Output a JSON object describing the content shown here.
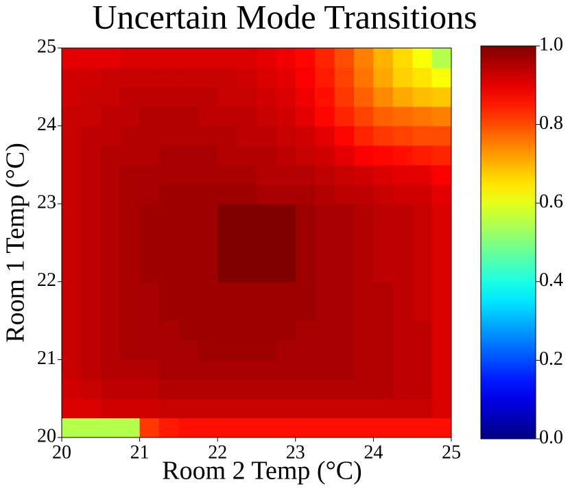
{
  "chart_data": {
    "type": "heatmap",
    "title": "Uncertain Mode Transitions",
    "x_label": "Room 2 Temp (°C)",
    "y_label": "Room 1 Temp (°C)",
    "xlim": [
      20,
      25
    ],
    "ylim": [
      20,
      25
    ],
    "xticks": [
      20,
      21,
      22,
      23,
      24,
      25
    ],
    "yticks": [
      20,
      21,
      22,
      23,
      24,
      25
    ],
    "colormap": "jet",
    "clim": [
      0,
      1
    ],
    "cticks": [
      {
        "value": 0,
        "label": "0.0"
      },
      {
        "value": 0.2,
        "label": "0.2"
      },
      {
        "value": 0.4,
        "label": "0.4"
      },
      {
        "value": 0.6,
        "label": "0.6"
      },
      {
        "value": 0.8,
        "label": "0.8"
      },
      {
        "value": 1,
        "label": "1.0"
      }
    ],
    "x": [
      20.125,
      20.375,
      20.625,
      20.875,
      21.125,
      21.375,
      21.625,
      21.875,
      22.125,
      22.375,
      22.625,
      22.875,
      23.125,
      23.375,
      23.625,
      23.875,
      24.125,
      24.375,
      24.625,
      24.875
    ],
    "y": [
      20.125,
      20.375,
      20.625,
      20.875,
      21.125,
      21.375,
      21.625,
      21.875,
      22.125,
      22.375,
      22.625,
      22.875,
      23.125,
      23.375,
      23.625,
      23.875,
      24.125,
      24.375,
      24.625,
      24.875
    ],
    "z": [
      [
        0.55,
        0.55,
        0.55,
        0.55,
        0.82,
        0.85,
        0.86,
        0.86,
        0.86,
        0.86,
        0.86,
        0.86,
        0.86,
        0.86,
        0.86,
        0.86,
        0.86,
        0.86,
        0.86,
        0.86
      ],
      [
        0.91,
        0.91,
        0.92,
        0.92,
        0.92,
        0.93,
        0.93,
        0.93,
        0.93,
        0.93,
        0.93,
        0.93,
        0.93,
        0.93,
        0.93,
        0.93,
        0.93,
        0.93,
        0.93,
        0.91
      ],
      [
        0.92,
        0.93,
        0.94,
        0.94,
        0.94,
        0.95,
        0.95,
        0.95,
        0.95,
        0.95,
        0.95,
        0.95,
        0.95,
        0.95,
        0.95,
        0.95,
        0.95,
        0.94,
        0.94,
        0.91
      ],
      [
        0.93,
        0.94,
        0.95,
        0.95,
        0.95,
        0.96,
        0.96,
        0.96,
        0.96,
        0.96,
        0.96,
        0.96,
        0.96,
        0.96,
        0.96,
        0.95,
        0.95,
        0.94,
        0.94,
        0.91
      ],
      [
        0.93,
        0.94,
        0.95,
        0.96,
        0.96,
        0.96,
        0.96,
        0.97,
        0.97,
        0.97,
        0.97,
        0.96,
        0.96,
        0.96,
        0.96,
        0.95,
        0.95,
        0.94,
        0.94,
        0.91
      ],
      [
        0.93,
        0.94,
        0.95,
        0.96,
        0.96,
        0.96,
        0.97,
        0.97,
        0.97,
        0.97,
        0.97,
        0.97,
        0.96,
        0.96,
        0.96,
        0.95,
        0.95,
        0.94,
        0.94,
        0.91
      ],
      [
        0.93,
        0.94,
        0.95,
        0.96,
        0.96,
        0.97,
        0.97,
        0.97,
        0.97,
        0.97,
        0.97,
        0.97,
        0.97,
        0.96,
        0.96,
        0.95,
        0.95,
        0.94,
        0.93,
        0.91
      ],
      [
        0.93,
        0.94,
        0.95,
        0.96,
        0.96,
        0.97,
        0.97,
        0.97,
        0.97,
        0.97,
        0.97,
        0.97,
        0.97,
        0.96,
        0.96,
        0.95,
        0.95,
        0.94,
        0.93,
        0.91
      ],
      [
        0.93,
        0.94,
        0.95,
        0.96,
        0.97,
        0.97,
        0.97,
        0.97,
        1.0,
        1.0,
        1.0,
        1.0,
        0.97,
        0.96,
        0.96,
        0.95,
        0.94,
        0.94,
        0.93,
        0.91
      ],
      [
        0.93,
        0.94,
        0.95,
        0.96,
        0.97,
        0.97,
        0.97,
        0.97,
        1.0,
        1.0,
        1.0,
        1.0,
        0.97,
        0.96,
        0.96,
        0.95,
        0.94,
        0.94,
        0.93,
        0.91
      ],
      [
        0.93,
        0.94,
        0.95,
        0.96,
        0.97,
        0.97,
        0.97,
        0.97,
        1.0,
        1.0,
        1.0,
        1.0,
        0.97,
        0.96,
        0.96,
        0.95,
        0.94,
        0.94,
        0.93,
        0.91
      ],
      [
        0.93,
        0.94,
        0.95,
        0.96,
        0.97,
        0.97,
        0.97,
        0.97,
        1.0,
        1.0,
        1.0,
        1.0,
        0.97,
        0.96,
        0.96,
        0.95,
        0.94,
        0.94,
        0.93,
        0.91
      ],
      [
        0.93,
        0.94,
        0.95,
        0.96,
        0.96,
        0.97,
        0.97,
        0.97,
        0.97,
        0.97,
        0.96,
        0.96,
        0.96,
        0.95,
        0.94,
        0.94,
        0.93,
        0.92,
        0.92,
        0.9
      ],
      [
        0.93,
        0.94,
        0.95,
        0.96,
        0.96,
        0.96,
        0.96,
        0.96,
        0.96,
        0.96,
        0.95,
        0.95,
        0.95,
        0.94,
        0.93,
        0.92,
        0.91,
        0.9,
        0.9,
        0.88
      ],
      [
        0.93,
        0.94,
        0.95,
        0.95,
        0.95,
        0.96,
        0.96,
        0.96,
        0.95,
        0.95,
        0.95,
        0.94,
        0.93,
        0.92,
        0.9,
        0.88,
        0.87,
        0.86,
        0.85,
        0.84
      ],
      [
        0.93,
        0.94,
        0.94,
        0.95,
        0.95,
        0.95,
        0.95,
        0.95,
        0.95,
        0.94,
        0.94,
        0.93,
        0.92,
        0.9,
        0.87,
        0.84,
        0.82,
        0.81,
        0.8,
        0.8
      ],
      [
        0.93,
        0.93,
        0.94,
        0.94,
        0.95,
        0.95,
        0.95,
        0.94,
        0.94,
        0.94,
        0.93,
        0.92,
        0.9,
        0.87,
        0.84,
        0.81,
        0.78,
        0.77,
        0.76,
        0.75
      ],
      [
        0.92,
        0.93,
        0.93,
        0.94,
        0.94,
        0.94,
        0.94,
        0.94,
        0.93,
        0.93,
        0.92,
        0.91,
        0.89,
        0.86,
        0.82,
        0.78,
        0.74,
        0.71,
        0.69,
        0.68
      ],
      [
        0.92,
        0.92,
        0.93,
        0.93,
        0.93,
        0.93,
        0.93,
        0.93,
        0.93,
        0.92,
        0.91,
        0.9,
        0.88,
        0.85,
        0.81,
        0.76,
        0.71,
        0.67,
        0.65,
        0.62
      ],
      [
        0.9,
        0.9,
        0.9,
        0.91,
        0.91,
        0.91,
        0.91,
        0.91,
        0.91,
        0.91,
        0.9,
        0.89,
        0.87,
        0.84,
        0.8,
        0.75,
        0.7,
        0.66,
        0.62,
        0.55
      ]
    ]
  }
}
